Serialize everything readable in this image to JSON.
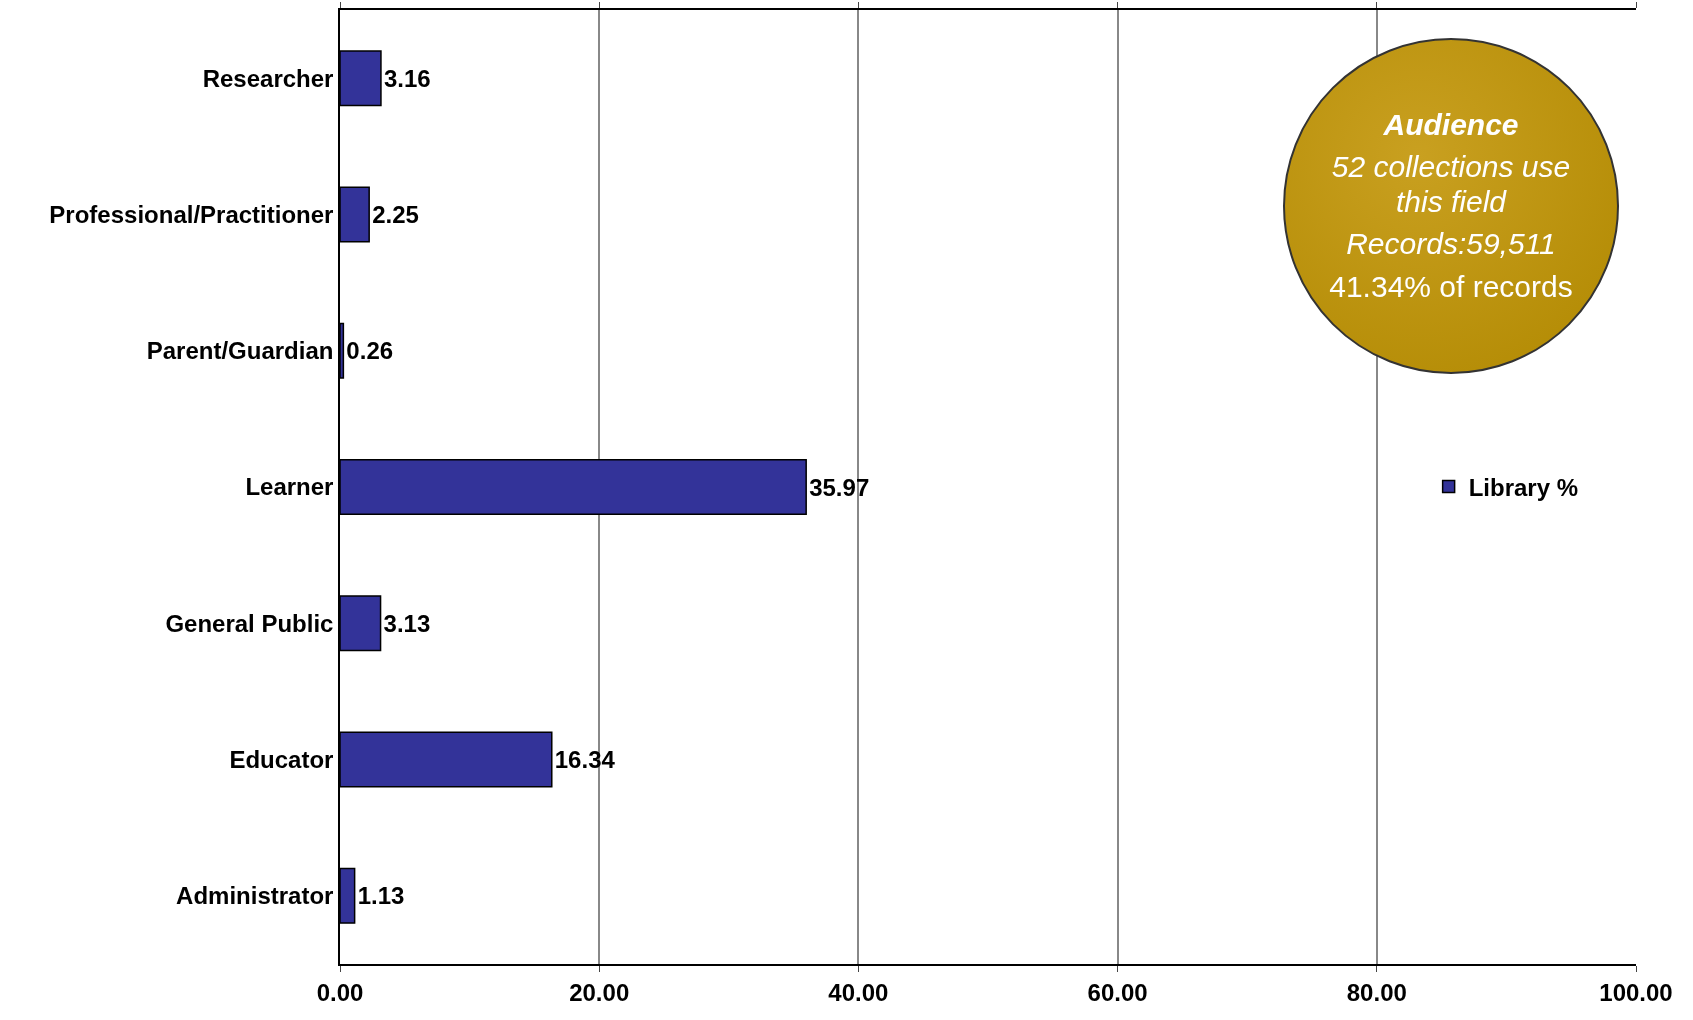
{
  "chart_data": {
    "type": "bar",
    "orientation": "horizontal",
    "categories": [
      "Researcher",
      "Professional/Practitioner",
      "Parent/Guardian",
      "Learner",
      "General Public",
      "Educator",
      "Administrator"
    ],
    "series": [
      {
        "name": "Library %",
        "color": "#333399",
        "values": [
          3.16,
          2.25,
          0.26,
          35.97,
          3.13,
          16.34,
          1.13
        ]
      }
    ],
    "xlim": [
      0,
      100
    ],
    "xticks": [
      {
        "value": 0,
        "label": "0.00"
      },
      {
        "value": 20,
        "label": "20.00"
      },
      {
        "value": 40,
        "label": "40.00"
      },
      {
        "value": 60,
        "label": "60.00"
      },
      {
        "value": 80,
        "label": "80.00"
      },
      {
        "value": 100,
        "label": "100.00"
      }
    ],
    "grid": "x",
    "legend": "right",
    "data_labels": true,
    "annotations": [
      "Audience",
      "52 collections use this field",
      "Records:59,511",
      "41.34% of records"
    ]
  }
}
